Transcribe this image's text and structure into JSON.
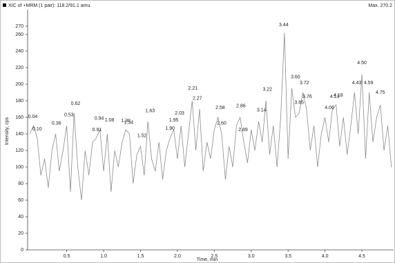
{
  "chart_data": {
    "type": "line",
    "title": "XIC of +MRM (1 pair): 118.2/91.1 amu",
    "subtitle": "Max. 270.2",
    "xlabel": "Time, min",
    "ylabel": "Intensity, cps",
    "color": "#8a8a8a",
    "x": [
      0.0,
      0.05,
      0.1,
      0.15,
      0.2,
      0.25,
      0.3,
      0.35,
      0.4,
      0.45,
      0.5,
      0.55,
      0.6,
      0.65,
      0.7,
      0.75,
      0.8,
      0.85,
      0.9,
      0.95,
      1.0,
      1.05,
      1.1,
      1.15,
      1.2,
      1.25,
      1.3,
      1.35,
      1.4,
      1.45,
      1.5,
      1.55,
      1.6,
      1.65,
      1.7,
      1.75,
      1.8,
      1.85,
      1.9,
      1.95,
      2.0,
      2.05,
      2.1,
      2.15,
      2.2,
      2.25,
      2.3,
      2.35,
      2.4,
      2.45,
      2.5,
      2.55,
      2.6,
      2.65,
      2.7,
      2.75,
      2.8,
      2.85,
      2.9,
      2.95,
      3.0,
      3.05,
      3.1,
      3.15,
      3.2,
      3.25,
      3.3,
      3.35,
      3.4,
      3.45,
      3.5,
      3.55,
      3.6,
      3.65,
      3.7,
      3.75,
      3.8,
      3.85,
      3.9,
      3.95,
      4.0,
      4.05,
      4.1,
      4.15,
      4.2,
      4.25,
      4.3,
      4.35,
      4.4,
      4.45,
      4.5,
      4.55,
      4.6,
      4.65,
      4.7,
      4.75,
      4.8,
      4.85,
      4.9
    ],
    "values": [
      140,
      150,
      135,
      90,
      110,
      75,
      120,
      140,
      95,
      120,
      150,
      70,
      165,
      100,
      60,
      120,
      90,
      130,
      135,
      145,
      95,
      140,
      70,
      120,
      100,
      130,
      145,
      140,
      80,
      115,
      125,
      90,
      155,
      110,
      95,
      130,
      85,
      120,
      135,
      145,
      110,
      150,
      100,
      140,
      180,
      120,
      170,
      95,
      130,
      110,
      145,
      160,
      140,
      85,
      125,
      100,
      150,
      160,
      130,
      105,
      145,
      120,
      155,
      130,
      180,
      115,
      150,
      100,
      160,
      262,
      110,
      195,
      160,
      165,
      190,
      170,
      120,
      150,
      100,
      140,
      160,
      130,
      170,
      175,
      125,
      160,
      115,
      150,
      190,
      140,
      212,
      110,
      190,
      130,
      160,
      175,
      120,
      150,
      100
    ],
    "xlim": [
      -0.03,
      4.93
    ],
    "xticks": [
      0.5,
      {
        "value": 1,
        "label": "1.0"
      },
      1.5,
      {
        "value": 2,
        "label": "2.0"
      },
      2.5,
      {
        "value": 3,
        "label": "3.0"
      },
      3.5,
      {
        "value": 4,
        "label": "4.0"
      },
      4.5
    ],
    "ylim": [
      0,
      275
    ],
    "yticks": [
      0,
      20,
      40,
      60,
      80,
      100,
      120,
      140,
      160,
      180,
      200,
      220,
      240,
      260,
      270
    ],
    "annotations": {
      "x": [
        0.04,
        0.1,
        0.36,
        0.53,
        0.62,
        0.91,
        0.94,
        1.08,
        1.3,
        1.34,
        1.52,
        1.63,
        1.9,
        1.95,
        2.03,
        2.21,
        2.27,
        2.58,
        2.6,
        2.86,
        2.89,
        3.14,
        3.22,
        3.44,
        3.6,
        3.65,
        3.72,
        3.76,
        4.06,
        4.13,
        4.18,
        4.43,
        4.5,
        4.59,
        4.75
      ],
      "y": [
        154,
        139,
        146,
        156,
        170,
        138,
        152,
        150,
        149,
        147,
        131,
        161,
        140,
        150,
        158,
        188,
        176,
        165,
        146,
        167,
        138,
        162,
        187,
        265,
        202,
        171,
        195,
        178,
        165,
        178,
        180,
        195,
        219,
        195,
        183
      ],
      "labels": [
        "0.04",
        "0.10",
        "0.36",
        "0.53",
        "0.62",
        "0.91",
        "0.94",
        "1.08",
        "1.30",
        "1.34",
        "1.52",
        "1.63",
        "1.90",
        "1.95",
        "2.03",
        "2.21",
        "2.27",
        "2.58",
        "2.60",
        "2.86",
        "2.89",
        "3.14",
        "3.22",
        "3.44",
        "3.60",
        "3.65",
        "3.72",
        "3.76",
        "4.06",
        "4.13",
        "4.18",
        "4.43",
        "4.50",
        "4.59",
        "4.75"
      ]
    }
  }
}
